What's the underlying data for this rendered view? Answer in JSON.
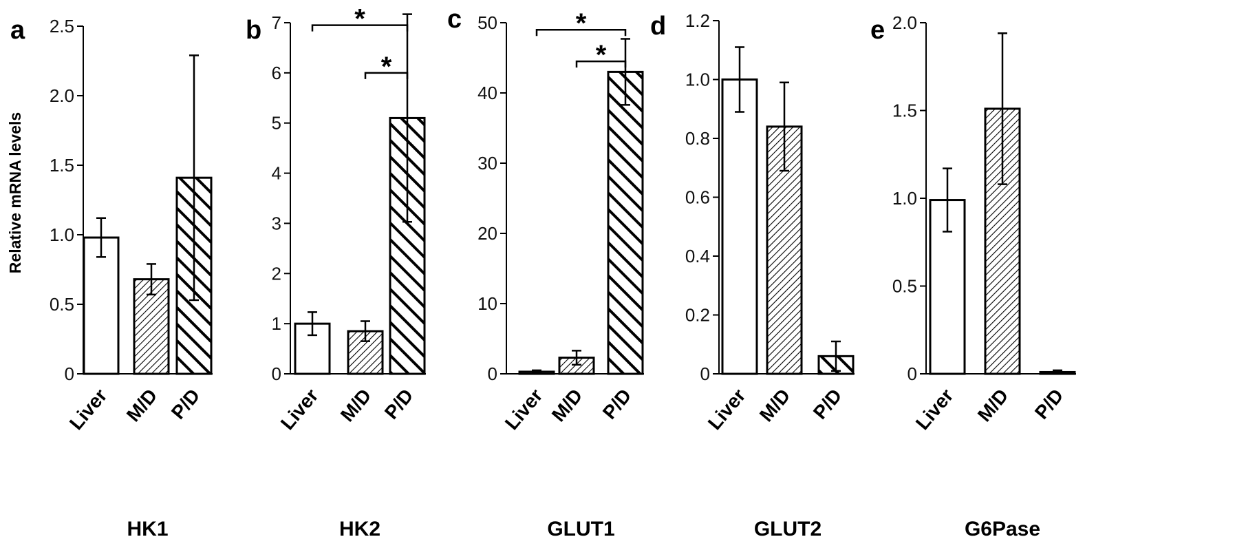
{
  "figure": {
    "ylabel": "Relative mRNA levels"
  },
  "chart_data": [
    {
      "type": "bar",
      "panel": "a",
      "title": "HK1",
      "categories": [
        "Liver",
        "M/D",
        "P/D"
      ],
      "values": [
        0.98,
        0.68,
        1.41
      ],
      "errors": [
        0.14,
        0.11,
        0.88
      ],
      "patterns": [
        "white",
        "fine-hatch",
        "bold-hatch"
      ],
      "ylim": [
        0,
        2.5
      ],
      "yticks": [
        "0",
        "0.5",
        "1.0",
        "1.5",
        "2.0",
        "2.5"
      ],
      "ytick_values": [
        0,
        0.5,
        1.0,
        1.5,
        2.0,
        2.5
      ],
      "significance": []
    },
    {
      "type": "bar",
      "panel": "b",
      "title": "HK2",
      "categories": [
        "Liver",
        "M/D",
        "P/D"
      ],
      "values": [
        1.0,
        0.85,
        5.1
      ],
      "errors": [
        0.23,
        0.2,
        2.07
      ],
      "patterns": [
        "white",
        "fine-hatch",
        "bold-hatch"
      ],
      "ylim": [
        0,
        7
      ],
      "yticks": [
        "0",
        "1",
        "2",
        "3",
        "4",
        "5",
        "6",
        "7"
      ],
      "ytick_values": [
        0,
        1,
        2,
        3,
        4,
        5,
        6,
        7
      ],
      "significance": [
        {
          "from": 0,
          "to": 2,
          "level": 6.95,
          "label": "*"
        },
        {
          "from": 1,
          "to": 2,
          "level": 6.0,
          "label": "*"
        }
      ]
    },
    {
      "type": "bar",
      "panel": "c",
      "title": "GLUT1",
      "categories": [
        "Liver",
        "M/D",
        "P/D"
      ],
      "values": [
        0.3,
        2.3,
        43.0
      ],
      "errors": [
        0.2,
        1.0,
        4.7
      ],
      "patterns": [
        "white",
        "fine-hatch",
        "bold-hatch"
      ],
      "ylim": [
        0,
        50
      ],
      "yticks": [
        "0",
        "10",
        "20",
        "30",
        "40",
        "50"
      ],
      "ytick_values": [
        0,
        10,
        20,
        30,
        40,
        50
      ],
      "significance": [
        {
          "from": 0,
          "to": 2,
          "level": 49.0,
          "label": "*"
        },
        {
          "from": 1,
          "to": 2,
          "level": 44.5,
          "label": "*"
        }
      ]
    },
    {
      "type": "bar",
      "panel": "d",
      "title": "GLUT2",
      "categories": [
        "Liver",
        "M/D",
        "P/D"
      ],
      "values": [
        1.0,
        0.84,
        0.06
      ],
      "errors": [
        0.11,
        0.15,
        0.05
      ],
      "patterns": [
        "white",
        "fine-hatch",
        "bold-hatch"
      ],
      "ylim": [
        0,
        1.2
      ],
      "yticks": [
        "0",
        "0.2",
        "0.4",
        "0.6",
        "0.8",
        "1.0",
        "1.2"
      ],
      "ytick_values": [
        0,
        0.2,
        0.4,
        0.6,
        0.8,
        1.0,
        1.2
      ],
      "significance": []
    },
    {
      "type": "bar",
      "panel": "e",
      "title": "G6Pase",
      "categories": [
        "Liver",
        "M/D",
        "P/D"
      ],
      "values": [
        0.99,
        1.51,
        0.01
      ],
      "errors": [
        0.18,
        0.43,
        0.01
      ],
      "patterns": [
        "white",
        "fine-hatch",
        "bold-hatch"
      ],
      "ylim": [
        0,
        2.0
      ],
      "yticks": [
        "0",
        "0.5",
        "1.0",
        "1.5",
        "2.0"
      ],
      "ytick_values": [
        0,
        0.5,
        1.0,
        1.5,
        2.0
      ],
      "significance": []
    }
  ]
}
